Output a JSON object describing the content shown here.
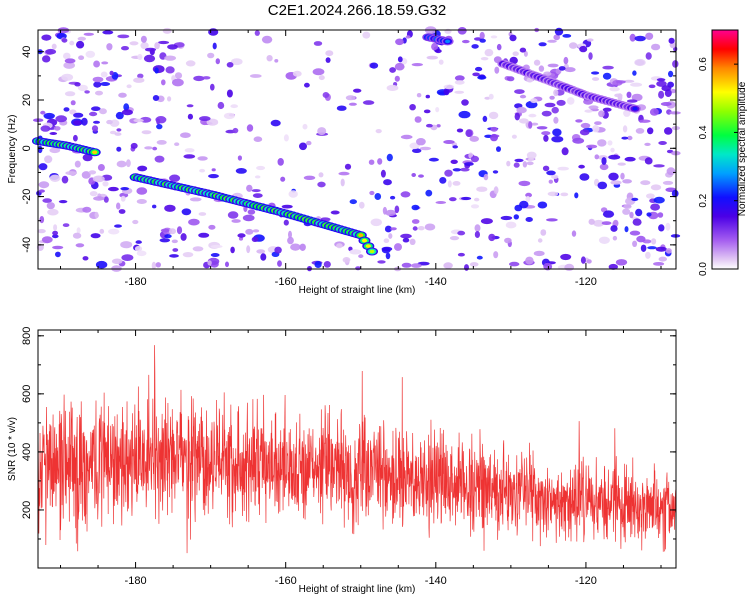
{
  "title": "C2E1.2024.266.18.59.G32",
  "chart_data": [
    {
      "type": "heatmap",
      "xlabel": "Height of straight line (km)",
      "ylabel": "Frequency (Hz)",
      "xlim": [
        -193,
        -108
      ],
      "ylim": [
        -50,
        49
      ],
      "xticks": [
        -180,
        -160,
        -140,
        -120
      ],
      "xtick_labels": [
        "-180",
        "-160",
        "-140",
        "-120"
      ],
      "yticks": [
        40,
        20,
        0,
        -20,
        -40
      ],
      "ytick_labels": [
        "40",
        "20",
        "0",
        "-20",
        "-40"
      ],
      "colorbar": {
        "label": "Normalized spectral amplitude",
        "range": [
          0,
          0.7
        ],
        "ticks": [
          0.0,
          0.2,
          0.4,
          0.6
        ],
        "tick_labels": [
          "0.0",
          "0.2",
          "0.4",
          "0.6"
        ]
      },
      "ridges": [
        {
          "x": [
            -193,
            -189,
            -185
          ],
          "y": [
            3,
            1,
            -2
          ],
          "amp": 0.62
        },
        {
          "x": [
            -180,
            -170,
            -160,
            -150,
            -148
          ],
          "y": [
            -12,
            -19,
            -27,
            -36,
            -45
          ],
          "amp": 0.6
        },
        {
          "x": [
            -141,
            -138
          ],
          "y": [
            46,
            44
          ],
          "amp": 0.35
        },
        {
          "x": [
            -131,
            -125,
            -120,
            -113
          ],
          "y": [
            35,
            28,
            22,
            16
          ],
          "amp": 0.22
        }
      ]
    },
    {
      "type": "line",
      "xlabel": "Height of straight line (km)",
      "ylabel": "SNR (10 * v/v)",
      "xlim": [
        -193,
        -108
      ],
      "ylim": [
        0,
        820
      ],
      "xticks": [
        -180,
        -160,
        -140,
        -120
      ],
      "xtick_labels": [
        "-180",
        "-160",
        "-140",
        "-120"
      ],
      "yticks": [
        800,
        600,
        400,
        200
      ],
      "ytick_labels": [
        "800",
        "600",
        "400",
        "200"
      ],
      "color": "#ee3333",
      "trend_x": [
        -193,
        -180,
        -165,
        -150,
        -140,
        -130,
        -120,
        -108
      ],
      "trend_y": [
        360,
        380,
        360,
        330,
        300,
        260,
        230,
        200
      ],
      "spread": [
        [
          -193,
          260
        ],
        [
          -108,
          150
        ]
      ]
    }
  ]
}
